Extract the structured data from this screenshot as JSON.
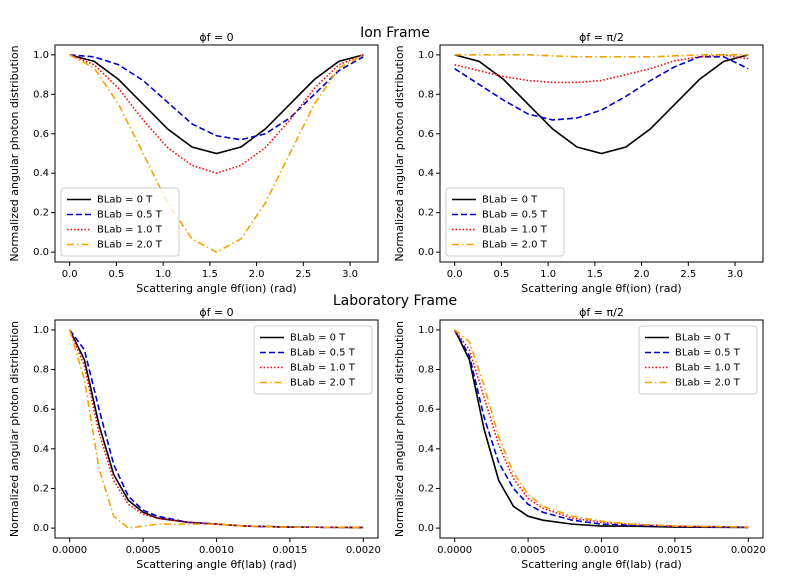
{
  "headings": [
    "Ion Frame",
    "Laboratory Frame"
  ],
  "chart_data": [
    {
      "type": "line",
      "title": "ϕf = 0",
      "x_label": "Scattering angle θf(ion) (rad)",
      "y_label": "Normalized angular photon distribution",
      "x": [
        0,
        0.2618,
        0.5236,
        0.7854,
        1.0472,
        1.309,
        1.5708,
        1.8326,
        2.0944,
        2.3562,
        2.618,
        2.8798,
        3.1416
      ],
      "series": [
        {
          "name": "BLab = 0 T",
          "color": "#000000",
          "dash": "solid",
          "values": [
            1,
            0.967,
            0.875,
            0.75,
            0.625,
            0.533,
            0.5,
            0.533,
            0.625,
            0.75,
            0.875,
            0.967,
            1
          ]
        },
        {
          "name": "BLab = 0.5 T",
          "color": "#0000cc",
          "dash": "dashed",
          "values": [
            1,
            0.99,
            0.95,
            0.87,
            0.76,
            0.65,
            0.59,
            0.57,
            0.6,
            0.68,
            0.8,
            0.92,
            0.99
          ]
        },
        {
          "name": "BLab = 1.0 T",
          "color": "#ff0000",
          "dash": "dotted",
          "values": [
            1,
            0.95,
            0.83,
            0.67,
            0.53,
            0.44,
            0.4,
            0.44,
            0.53,
            0.67,
            0.83,
            0.95,
            1
          ]
        },
        {
          "name": "BLab = 2.0 T",
          "color": "#f5a300",
          "dash": "dashdot",
          "values": [
            1,
            0.933,
            0.75,
            0.5,
            0.25,
            0.067,
            0,
            0.067,
            0.25,
            0.5,
            0.75,
            0.933,
            1
          ]
        }
      ],
      "xlim": [
        -0.157,
        3.299
      ],
      "ylim": [
        -0.05,
        1.05
      ],
      "xticks": [
        {
          "value": 0,
          "label": "0.0"
        },
        0.5,
        {
          "value": 1,
          "label": "1.0"
        },
        1.5,
        {
          "value": 2,
          "label": "2.0"
        },
        2.5,
        {
          "value": 3,
          "label": "3.0"
        }
      ],
      "yticks": [
        {
          "value": 0,
          "label": "0.0"
        },
        0.2,
        0.4,
        0.6,
        0.8,
        {
          "value": 1,
          "label": "1.0"
        }
      ],
      "legend": "lower left"
    },
    {
      "type": "line",
      "title": "ϕf = π/2",
      "x_label": "Scattering angle θf(ion) (rad)",
      "y_label": "Normalized angular photon distribution",
      "x": [
        0,
        0.2618,
        0.5236,
        0.7854,
        1.0472,
        1.309,
        1.5708,
        1.8326,
        2.0944,
        2.3562,
        2.618,
        2.8798,
        3.1416
      ],
      "series": [
        {
          "name": "BLab = 0 T",
          "color": "#000000",
          "dash": "solid",
          "values": [
            1,
            0.967,
            0.875,
            0.75,
            0.625,
            0.533,
            0.5,
            0.533,
            0.625,
            0.75,
            0.875,
            0.967,
            1
          ]
        },
        {
          "name": "BLab = 0.5 T",
          "color": "#0000cc",
          "dash": "dashed",
          "values": [
            0.93,
            0.85,
            0.77,
            0.7,
            0.67,
            0.68,
            0.72,
            0.79,
            0.87,
            0.94,
            0.99,
            0.99,
            0.93
          ]
        },
        {
          "name": "BLab = 1.0 T",
          "color": "#ff0000",
          "dash": "dotted",
          "values": [
            0.95,
            0.92,
            0.89,
            0.87,
            0.86,
            0.86,
            0.87,
            0.9,
            0.93,
            0.97,
            0.99,
            1,
            0.98
          ]
        },
        {
          "name": "BLab = 2.0 T",
          "color": "#f5a300",
          "dash": "dashdot",
          "values": [
            1,
            1,
            1,
            1,
            0.995,
            0.99,
            0.99,
            0.99,
            0.99,
            0.995,
            1,
            1,
            1
          ]
        }
      ],
      "xlim": [
        -0.157,
        3.299
      ],
      "ylim": [
        -0.05,
        1.05
      ],
      "xticks": [
        {
          "value": 0,
          "label": "0.0"
        },
        0.5,
        {
          "value": 1,
          "label": "1.0"
        },
        1.5,
        {
          "value": 2,
          "label": "2.0"
        },
        2.5,
        {
          "value": 3,
          "label": "3.0"
        }
      ],
      "yticks": [
        {
          "value": 0,
          "label": "0.0"
        },
        0.2,
        0.4,
        0.6,
        0.8,
        {
          "value": 1,
          "label": "1.0"
        }
      ],
      "legend": "lower left"
    },
    {
      "type": "line",
      "title": "ϕf = 0",
      "x_label": "Scattering angle θf(lab) (rad)",
      "y_label": "Normalized angular photon distribution",
      "x": [
        0,
        0.0001,
        0.0002,
        0.0003,
        0.0004,
        0.0005,
        0.0006,
        0.0008,
        0.001,
        0.0012,
        0.0015,
        0.002
      ],
      "series": [
        {
          "name": "BLab = 0 T",
          "color": "#000000",
          "dash": "solid",
          "values": [
            1,
            0.85,
            0.52,
            0.27,
            0.14,
            0.08,
            0.05,
            0.03,
            0.02,
            0.01,
            0.005,
            0.003
          ]
        },
        {
          "name": "BLab = 0.5 T",
          "color": "#0000cc",
          "dash": "dashed",
          "values": [
            1,
            0.9,
            0.6,
            0.32,
            0.16,
            0.09,
            0.06,
            0.03,
            0.02,
            0.01,
            0.005,
            0.003
          ]
        },
        {
          "name": "BLab = 1.0 T",
          "color": "#ff0000",
          "dash": "dotted",
          "values": [
            1,
            0.82,
            0.48,
            0.24,
            0.12,
            0.07,
            0.05,
            0.03,
            0.02,
            0.01,
            0.005,
            0.003
          ]
        },
        {
          "name": "BLab = 2.0 T",
          "color": "#f5a300",
          "dash": "dashdot",
          "values": [
            1,
            0.75,
            0.3,
            0.06,
            0,
            0.01,
            0.02,
            0.02,
            0.02,
            0.01,
            0.005,
            0.003
          ]
        }
      ],
      "xlim": [
        -0.0001,
        0.0021
      ],
      "ylim": [
        -0.05,
        1.05
      ],
      "xticks": [
        {
          "value": 0,
          "label": "0.0000"
        },
        0.0005,
        {
          "value": 0.001,
          "label": "0.0010"
        },
        0.0015,
        {
          "value": 0.002,
          "label": "0.0020"
        }
      ],
      "yticks": [
        {
          "value": 0,
          "label": "0.0"
        },
        0.2,
        0.4,
        0.6,
        0.8,
        {
          "value": 1,
          "label": "1.0"
        }
      ],
      "legend": "upper right"
    },
    {
      "type": "line",
      "title": "ϕf = π/2",
      "x_label": "Scattering angle θf(lab) (rad)",
      "y_label": "Normalized angular photon distribution",
      "x": [
        0,
        0.0001,
        0.0002,
        0.0003,
        0.0004,
        0.0005,
        0.0006,
        0.0008,
        0.001,
        0.0012,
        0.0015,
        0.002
      ],
      "series": [
        {
          "name": "BLab = 0 T",
          "color": "#000000",
          "dash": "solid",
          "values": [
            1,
            0.85,
            0.5,
            0.24,
            0.11,
            0.06,
            0.04,
            0.02,
            0.01,
            0.01,
            0.005,
            0.003
          ]
        },
        {
          "name": "BLab = 0.5 T",
          "color": "#0000cc",
          "dash": "dashed",
          "values": [
            1,
            0.87,
            0.56,
            0.33,
            0.2,
            0.12,
            0.08,
            0.04,
            0.02,
            0.015,
            0.008,
            0.004
          ]
        },
        {
          "name": "BLab = 1.0 T",
          "color": "#ff0000",
          "dash": "dotted",
          "values": [
            1,
            0.9,
            0.66,
            0.42,
            0.25,
            0.15,
            0.1,
            0.05,
            0.03,
            0.02,
            0.01,
            0.005
          ]
        },
        {
          "name": "BLab = 2.0 T",
          "color": "#f5a300",
          "dash": "dashdot",
          "values": [
            1,
            0.94,
            0.72,
            0.46,
            0.28,
            0.17,
            0.11,
            0.06,
            0.035,
            0.02,
            0.01,
            0.005
          ]
        }
      ],
      "xlim": [
        -0.0001,
        0.0021
      ],
      "ylim": [
        -0.05,
        1.05
      ],
      "xticks": [
        {
          "value": 0,
          "label": "0.0000"
        },
        0.0005,
        {
          "value": 0.001,
          "label": "0.0010"
        },
        0.0015,
        {
          "value": 0.002,
          "label": "0.0020"
        }
      ],
      "yticks": [
        {
          "value": 0,
          "label": "0.0"
        },
        0.2,
        0.4,
        0.6,
        0.8,
        {
          "value": 1,
          "label": "1.0"
        }
      ],
      "legend": "upper right"
    }
  ]
}
